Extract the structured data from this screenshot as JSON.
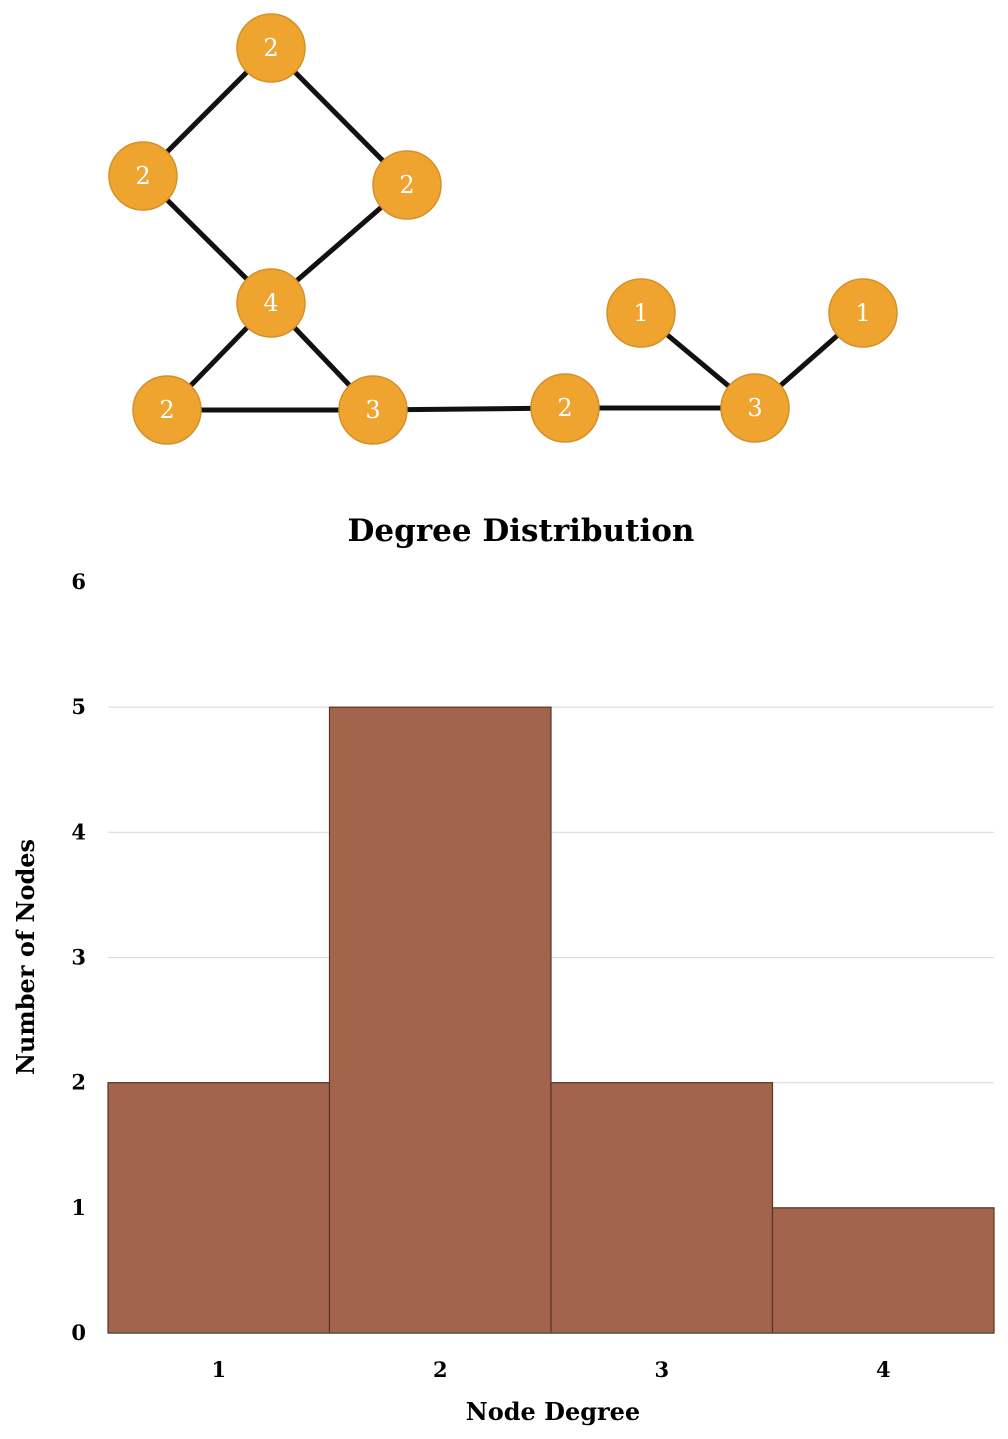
{
  "graph": {
    "node_color": "#F0A430",
    "node_stroke": "#D4902A",
    "edge_color": "#111111",
    "nodes": [
      {
        "id": "a",
        "degree": "2"
      },
      {
        "id": "b",
        "degree": "2"
      },
      {
        "id": "c",
        "degree": "2"
      },
      {
        "id": "d",
        "degree": "4"
      },
      {
        "id": "e",
        "degree": "2"
      },
      {
        "id": "f",
        "degree": "3"
      },
      {
        "id": "g",
        "degree": "2"
      },
      {
        "id": "h",
        "degree": "1"
      },
      {
        "id": "i",
        "degree": "1"
      },
      {
        "id": "j",
        "degree": "3"
      }
    ],
    "edges": [
      [
        "a",
        "b"
      ],
      [
        "a",
        "c"
      ],
      [
        "b",
        "d"
      ],
      [
        "c",
        "d"
      ],
      [
        "d",
        "e"
      ],
      [
        "d",
        "f"
      ],
      [
        "e",
        "f"
      ],
      [
        "f",
        "g"
      ],
      [
        "g",
        "j"
      ],
      [
        "h",
        "j"
      ],
      [
        "i",
        "j"
      ]
    ]
  },
  "chart_data": {
    "type": "bar",
    "title": "Degree Distribution",
    "xlabel": "Node Degree",
    "ylabel": "Number of Nodes",
    "categories": [
      "1",
      "2",
      "3",
      "4"
    ],
    "values": [
      2,
      5,
      2,
      1
    ],
    "ylim": [
      0,
      6
    ],
    "yticks": [
      "0",
      "1",
      "2",
      "3",
      "4",
      "5",
      "6"
    ],
    "bar_color": "#A3644D",
    "bar_edge_color": "#5A3326",
    "grid": true,
    "grid_color": "#DDDDDD"
  }
}
